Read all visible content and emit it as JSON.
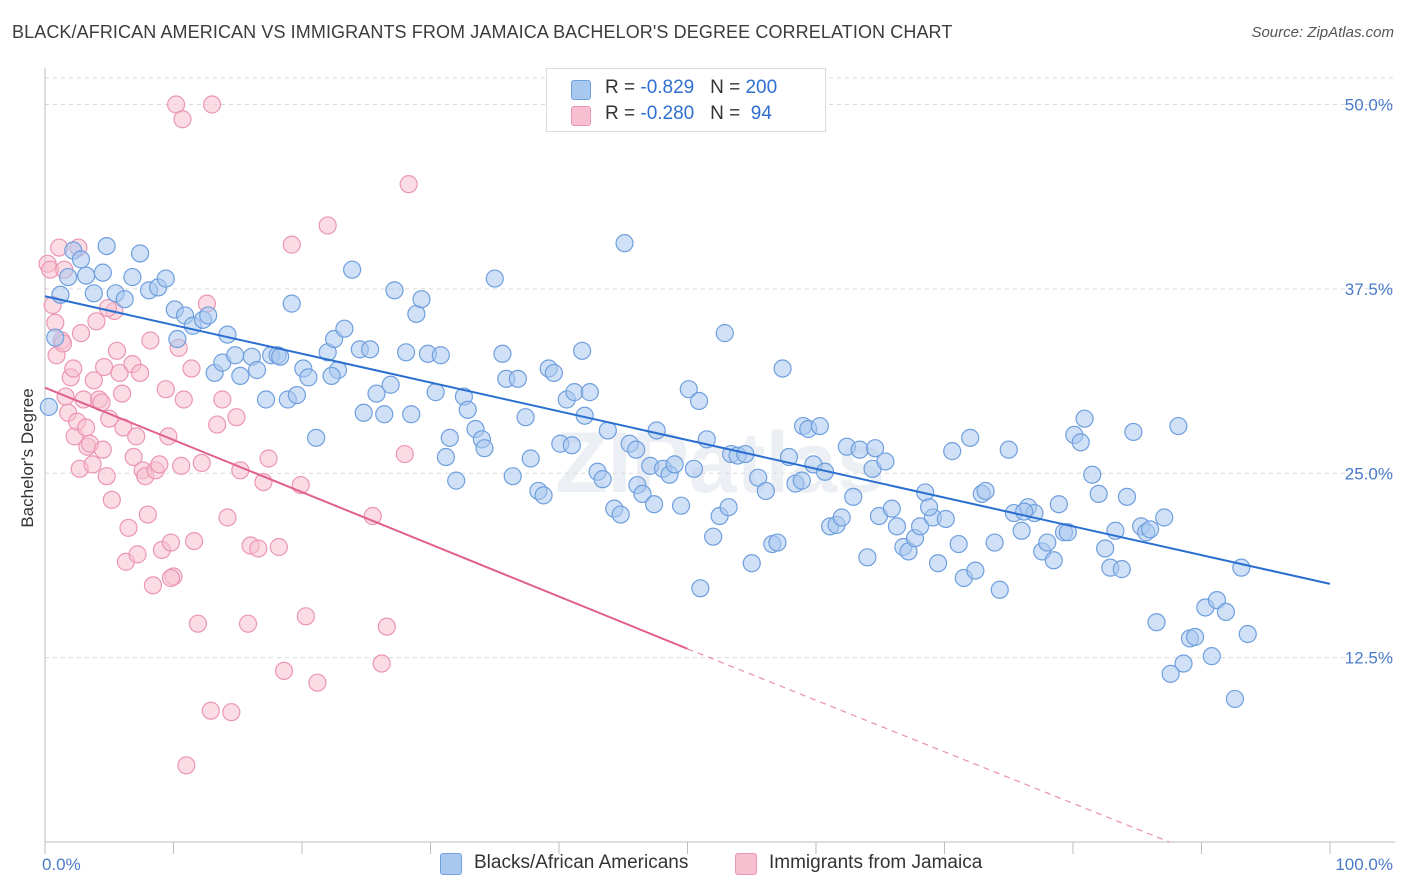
{
  "title": "BLACK/AFRICAN AMERICAN VS IMMIGRANTS FROM JAMAICA BACHELOR'S DEGREE CORRELATION CHART",
  "source": "Source: ZipAtlas.com",
  "watermark": "ZIPatlas",
  "legend": {
    "rows": [
      {
        "r_label": "R = ",
        "r_value": "-0.829",
        "n_label": "N = ",
        "n_value": "200"
      },
      {
        "r_label": "R = ",
        "r_value": "-0.280",
        "n_label": "N = ",
        "n_value": " 94"
      }
    ]
  },
  "bottom_legend": [
    "Blacks/African Americans",
    "Immigrants from Jamaica"
  ],
  "colors": {
    "blue_fill": "#a9c8f0",
    "blue_stroke": "#6f9fde",
    "blue_line": "#2a6fd0",
    "pink_fill": "#f8bfd0",
    "pink_stroke": "#eb96b2",
    "pink_line": "#e0608e",
    "grid": "#d9d9d9",
    "tick_text": "#4a7bc8"
  },
  "chart_data": {
    "type": "scatter",
    "title": "BLACK/AFRICAN AMERICAN VS IMMIGRANTS FROM JAMAICA BACHELOR'S DEGREE CORRELATION CHART",
    "xlabel": "",
    "ylabel": "Bachelor's Degree",
    "xlim": [
      0,
      100
    ],
    "ylim": [
      0,
      52
    ],
    "x_tick_labels": [
      "0.0%",
      "100.0%"
    ],
    "y_ticks": [
      12.5,
      25.0,
      37.5,
      50.0
    ],
    "y_tick_labels": [
      "12.5%",
      "25.0%",
      "37.5%",
      "50.0%"
    ],
    "grid": true,
    "legend_position": "top-center",
    "series": [
      {
        "name": "Blacks/African Americans",
        "stats": {
          "R": -0.829,
          "N": 200
        },
        "trend": {
          "x": [
            0,
            100
          ],
          "y": [
            37.0,
            17.5
          ]
        },
        "points": [
          [
            0.3,
            29.5
          ],
          [
            0.8,
            34.2
          ],
          [
            1.2,
            37.1
          ],
          [
            1.8,
            38.3
          ],
          [
            2.2,
            40.1
          ],
          [
            2.8,
            39.5
          ],
          [
            3.2,
            38.4
          ],
          [
            3.8,
            37.2
          ],
          [
            4.5,
            38.6
          ],
          [
            4.8,
            40.4
          ],
          [
            5.5,
            37.2
          ],
          [
            6.2,
            36.8
          ],
          [
            6.8,
            38.3
          ],
          [
            7.4,
            39.9
          ],
          [
            8.1,
            37.4
          ],
          [
            8.8,
            37.6
          ],
          [
            9.4,
            38.2
          ],
          [
            10.1,
            36.1
          ],
          [
            10.3,
            34.1
          ],
          [
            10.9,
            35.7
          ],
          [
            11.5,
            35.0
          ],
          [
            12.3,
            35.4
          ],
          [
            12.7,
            35.7
          ],
          [
            13.2,
            31.8
          ],
          [
            13.8,
            32.5
          ],
          [
            14.2,
            34.4
          ],
          [
            14.8,
            33.0
          ],
          [
            15.2,
            31.6
          ],
          [
            16.1,
            32.9
          ],
          [
            16.5,
            32.0
          ],
          [
            17.2,
            30.0
          ],
          [
            17.6,
            33.0
          ],
          [
            18.1,
            33.0
          ],
          [
            18.3,
            32.9
          ],
          [
            18.9,
            30.0
          ],
          [
            19.2,
            36.5
          ],
          [
            19.6,
            30.3
          ],
          [
            20.1,
            32.1
          ],
          [
            20.5,
            31.5
          ],
          [
            21.1,
            27.4
          ],
          [
            22.0,
            33.2
          ],
          [
            22.5,
            34.1
          ],
          [
            22.8,
            32.0
          ],
          [
            23.3,
            34.8
          ],
          [
            23.9,
            38.8
          ],
          [
            24.5,
            33.4
          ],
          [
            24.8,
            29.1
          ],
          [
            25.3,
            33.4
          ],
          [
            25.8,
            30.4
          ],
          [
            26.4,
            29.0
          ],
          [
            26.9,
            31.0
          ],
          [
            27.2,
            37.4
          ],
          [
            28.1,
            33.2
          ],
          [
            28.5,
            29.0
          ],
          [
            28.9,
            35.8
          ],
          [
            29.3,
            36.8
          ],
          [
            29.8,
            33.1
          ],
          [
            30.4,
            30.5
          ],
          [
            30.8,
            33.0
          ],
          [
            31.2,
            26.1
          ],
          [
            31.5,
            27.4
          ],
          [
            32.0,
            24.5
          ],
          [
            32.6,
            30.2
          ],
          [
            32.9,
            29.3
          ],
          [
            33.5,
            28.0
          ],
          [
            34.0,
            27.3
          ],
          [
            34.2,
            26.7
          ],
          [
            35.0,
            38.2
          ],
          [
            35.6,
            33.1
          ],
          [
            35.9,
            31.4
          ],
          [
            36.4,
            24.8
          ],
          [
            36.8,
            31.4
          ],
          [
            37.4,
            28.8
          ],
          [
            37.8,
            26.0
          ],
          [
            38.4,
            23.8
          ],
          [
            38.8,
            23.5
          ],
          [
            39.2,
            32.1
          ],
          [
            39.6,
            31.8
          ],
          [
            40.1,
            27.0
          ],
          [
            40.6,
            30.0
          ],
          [
            41.0,
            26.9
          ],
          [
            41.2,
            30.5
          ],
          [
            41.8,
            33.3
          ],
          [
            42.0,
            28.9
          ],
          [
            42.4,
            30.5
          ],
          [
            43.0,
            25.1
          ],
          [
            43.4,
            24.6
          ],
          [
            43.8,
            27.9
          ],
          [
            44.3,
            22.6
          ],
          [
            44.8,
            22.2
          ],
          [
            45.1,
            40.6
          ],
          [
            45.5,
            27.0
          ],
          [
            46.1,
            24.2
          ],
          [
            46.5,
            23.6
          ],
          [
            47.1,
            25.5
          ],
          [
            47.6,
            27.9
          ],
          [
            48.1,
            25.3
          ],
          [
            48.6,
            24.9
          ],
          [
            49.0,
            25.6
          ],
          [
            49.5,
            22.8
          ],
          [
            50.1,
            30.7
          ],
          [
            50.5,
            25.3
          ],
          [
            50.9,
            29.9
          ],
          [
            51.5,
            27.3
          ],
          [
            52.0,
            20.7
          ],
          [
            52.5,
            22.1
          ],
          [
            52.9,
            34.5
          ],
          [
            53.4,
            26.3
          ],
          [
            53.9,
            26.2
          ],
          [
            54.5,
            26.3
          ],
          [
            55.0,
            18.9
          ],
          [
            55.5,
            24.7
          ],
          [
            56.1,
            23.8
          ],
          [
            56.6,
            20.2
          ],
          [
            57.0,
            20.3
          ],
          [
            57.4,
            32.1
          ],
          [
            57.9,
            26.1
          ],
          [
            58.4,
            24.3
          ],
          [
            59.0,
            28.2
          ],
          [
            59.4,
            28.0
          ],
          [
            59.8,
            25.6
          ],
          [
            60.3,
            28.2
          ],
          [
            60.7,
            25.1
          ],
          [
            61.1,
            21.4
          ],
          [
            61.6,
            21.5
          ],
          [
            62.0,
            22.0
          ],
          [
            62.4,
            26.8
          ],
          [
            62.9,
            23.4
          ],
          [
            63.4,
            26.6
          ],
          [
            64.0,
            19.3
          ],
          [
            64.4,
            25.3
          ],
          [
            64.9,
            22.1
          ],
          [
            65.4,
            25.8
          ],
          [
            65.9,
            22.6
          ],
          [
            66.3,
            21.4
          ],
          [
            66.8,
            20.0
          ],
          [
            67.2,
            19.7
          ],
          [
            67.7,
            20.6
          ],
          [
            68.1,
            21.4
          ],
          [
            68.5,
            23.7
          ],
          [
            69.1,
            22.0
          ],
          [
            69.5,
            18.9
          ],
          [
            70.1,
            21.9
          ],
          [
            70.6,
            26.5
          ],
          [
            71.1,
            20.2
          ],
          [
            71.5,
            17.9
          ],
          [
            72.0,
            27.4
          ],
          [
            72.4,
            18.4
          ],
          [
            72.9,
            23.6
          ],
          [
            73.2,
            23.8
          ],
          [
            73.9,
            20.3
          ],
          [
            74.3,
            17.1
          ],
          [
            75.0,
            26.6
          ],
          [
            75.4,
            22.3
          ],
          [
            76.0,
            21.1
          ],
          [
            76.5,
            22.7
          ],
          [
            77.0,
            22.3
          ],
          [
            77.6,
            19.7
          ],
          [
            78.0,
            20.3
          ],
          [
            78.5,
            19.1
          ],
          [
            78.9,
            22.9
          ],
          [
            79.3,
            21.0
          ],
          [
            79.6,
            21.0
          ],
          [
            80.1,
            27.6
          ],
          [
            80.6,
            27.1
          ],
          [
            80.9,
            28.7
          ],
          [
            81.5,
            24.9
          ],
          [
            82.0,
            23.6
          ],
          [
            82.5,
            19.9
          ],
          [
            82.9,
            18.6
          ],
          [
            83.3,
            21.1
          ],
          [
            83.8,
            18.5
          ],
          [
            84.2,
            23.4
          ],
          [
            84.7,
            27.8
          ],
          [
            85.3,
            21.4
          ],
          [
            85.7,
            21.0
          ],
          [
            86.0,
            21.2
          ],
          [
            86.5,
            14.9
          ],
          [
            87.1,
            22.0
          ],
          [
            87.6,
            11.4
          ],
          [
            88.2,
            28.2
          ],
          [
            88.6,
            12.1
          ],
          [
            89.1,
            13.8
          ],
          [
            89.5,
            13.9
          ],
          [
            90.3,
            15.9
          ],
          [
            90.8,
            12.6
          ],
          [
            91.2,
            16.4
          ],
          [
            91.9,
            15.6
          ],
          [
            92.6,
            9.7
          ],
          [
            93.1,
            18.6
          ],
          [
            93.6,
            14.1
          ],
          [
            47.4,
            22.9
          ],
          [
            51.0,
            17.2
          ],
          [
            22.3,
            31.6
          ],
          [
            46.0,
            26.6
          ],
          [
            53.2,
            22.7
          ],
          [
            64.6,
            26.7
          ],
          [
            68.8,
            22.7
          ],
          [
            76.2,
            22.4
          ],
          [
            58.9,
            24.5
          ]
        ]
      },
      {
        "name": "Immigrants from Jamaica",
        "stats": {
          "R": -0.28,
          "N": 94
        },
        "trend": {
          "x": [
            0,
            50
          ],
          "y": [
            30.8,
            13.1
          ]
        },
        "trend_dashed": {
          "x": [
            50,
            87.5
          ],
          "y": [
            13.1,
            0.0
          ]
        },
        "points": [
          [
            0.2,
            39.2
          ],
          [
            0.4,
            38.8
          ],
          [
            0.6,
            36.4
          ],
          [
            0.8,
            35.2
          ],
          [
            0.9,
            33.0
          ],
          [
            1.1,
            40.3
          ],
          [
            1.3,
            34.0
          ],
          [
            1.4,
            33.8
          ],
          [
            1.6,
            30.2
          ],
          [
            1.8,
            29.1
          ],
          [
            2.0,
            31.5
          ],
          [
            2.2,
            32.1
          ],
          [
            2.3,
            27.5
          ],
          [
            2.5,
            28.5
          ],
          [
            2.7,
            25.3
          ],
          [
            2.8,
            34.5
          ],
          [
            3.0,
            30.0
          ],
          [
            3.2,
            28.1
          ],
          [
            3.3,
            26.8
          ],
          [
            3.5,
            27.0
          ],
          [
            3.7,
            25.6
          ],
          [
            3.8,
            31.3
          ],
          [
            4.0,
            35.3
          ],
          [
            4.2,
            30.0
          ],
          [
            4.4,
            29.8
          ],
          [
            4.5,
            26.6
          ],
          [
            4.6,
            32.2
          ],
          [
            4.8,
            24.8
          ],
          [
            5.0,
            28.7
          ],
          [
            5.2,
            23.2
          ],
          [
            5.4,
            36.0
          ],
          [
            5.6,
            33.3
          ],
          [
            5.8,
            31.8
          ],
          [
            6.0,
            30.4
          ],
          [
            6.1,
            28.1
          ],
          [
            6.3,
            19.0
          ],
          [
            6.5,
            21.3
          ],
          [
            6.8,
            32.4
          ],
          [
            6.9,
            26.1
          ],
          [
            7.1,
            27.5
          ],
          [
            7.2,
            19.5
          ],
          [
            7.4,
            31.8
          ],
          [
            7.6,
            25.2
          ],
          [
            7.8,
            24.8
          ],
          [
            8.0,
            22.2
          ],
          [
            8.2,
            34.0
          ],
          [
            8.4,
            17.4
          ],
          [
            8.6,
            25.2
          ],
          [
            8.9,
            25.6
          ],
          [
            9.1,
            19.8
          ],
          [
            9.4,
            30.7
          ],
          [
            9.6,
            27.5
          ],
          [
            9.8,
            20.3
          ],
          [
            10.0,
            18.0
          ],
          [
            10.2,
            50.0
          ],
          [
            10.4,
            33.5
          ],
          [
            10.6,
            25.5
          ],
          [
            10.8,
            30.0
          ],
          [
            11.0,
            5.2
          ],
          [
            11.4,
            32.1
          ],
          [
            11.6,
            20.4
          ],
          [
            11.9,
            14.8
          ],
          [
            12.2,
            25.7
          ],
          [
            12.6,
            36.5
          ],
          [
            12.9,
            8.9
          ],
          [
            13.4,
            28.3
          ],
          [
            13.8,
            30.0
          ],
          [
            14.2,
            22.0
          ],
          [
            14.5,
            8.8
          ],
          [
            14.9,
            28.8
          ],
          [
            15.2,
            25.2
          ],
          [
            15.8,
            14.8
          ],
          [
            16.0,
            20.1
          ],
          [
            16.6,
            19.9
          ],
          [
            17.0,
            24.4
          ],
          [
            17.4,
            26.0
          ],
          [
            18.2,
            20.0
          ],
          [
            18.6,
            11.6
          ],
          [
            19.2,
            40.5
          ],
          [
            19.9,
            24.2
          ],
          [
            20.3,
            15.3
          ],
          [
            21.2,
            10.8
          ],
          [
            22.0,
            41.8
          ],
          [
            25.5,
            22.1
          ],
          [
            26.2,
            12.1
          ],
          [
            26.6,
            14.6
          ],
          [
            28.0,
            26.3
          ],
          [
            28.3,
            44.6
          ],
          [
            4.9,
            36.2
          ],
          [
            2.6,
            40.3
          ],
          [
            1.5,
            38.8
          ],
          [
            9.8,
            17.9
          ],
          [
            13.0,
            50.0
          ],
          [
            10.7,
            49.0
          ]
        ]
      }
    ]
  }
}
